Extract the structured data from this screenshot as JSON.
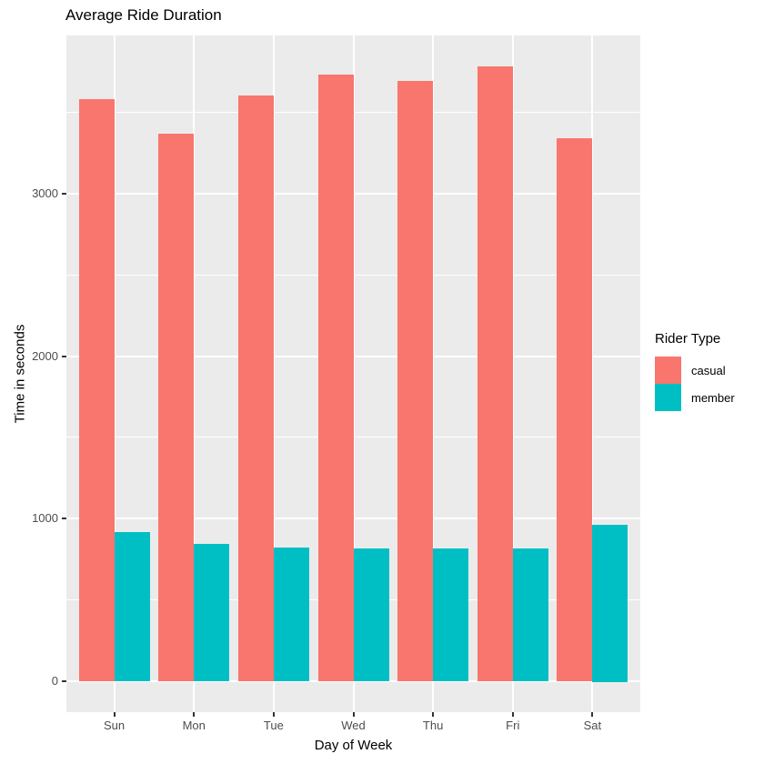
{
  "chart_data": {
    "type": "bar",
    "grouped": "dodge",
    "title": "Average Ride Duration",
    "xlabel": "Day of Week",
    "ylabel": "Time in seconds",
    "categories": [
      "Sun",
      "Mon",
      "Tue",
      "Wed",
      "Thu",
      "Fri",
      "Sat"
    ],
    "series": [
      {
        "name": "casual",
        "color": "#F8766D",
        "values": [
          3580,
          3370,
          3600,
          3730,
          3690,
          3780,
          3340
        ]
      },
      {
        "name": "member",
        "color": "#00BFC4",
        "values": [
          920,
          845,
          820,
          815,
          815,
          815,
          965
        ]
      }
    ],
    "yticks": [
      0,
      1000,
      2000,
      3000
    ],
    "yticks_minor": [
      500,
      1500,
      2500,
      3500
    ],
    "ylim": [
      -190,
      3972
    ],
    "legend_title": "Rider Type",
    "legend_position": "right",
    "grid": "on",
    "panel_background": "#EBEBEB",
    "gridline_color": "#FFFFFF",
    "tick_label_color": "#4d4d4d",
    "tick_mark_color": "#333333"
  }
}
